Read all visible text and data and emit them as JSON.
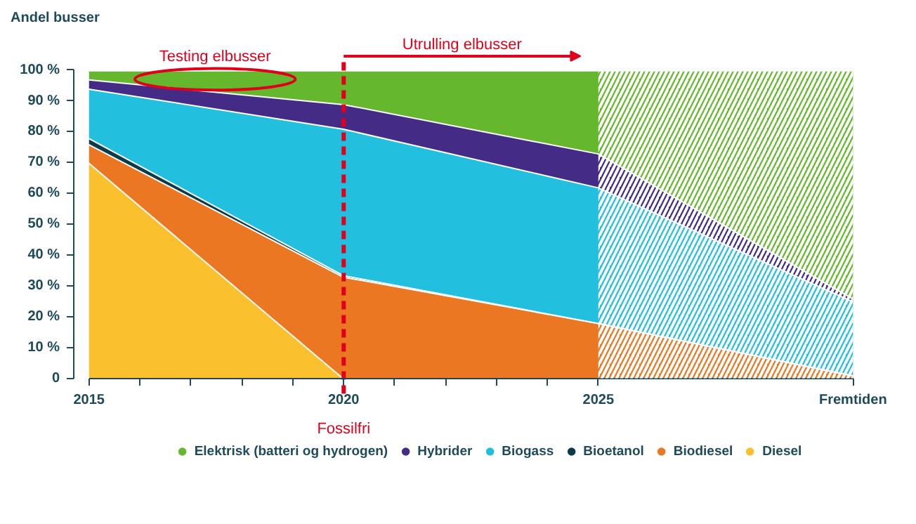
{
  "chart_data": {
    "type": "area",
    "stacked": true,
    "ylabel": "Andel busser",
    "x": [
      2015,
      2020,
      2025,
      2030
    ],
    "series": [
      {
        "name": "Diesel",
        "color": "#fbc02d",
        "values": [
          70,
          0,
          0,
          0
        ]
      },
      {
        "name": "Biodiesel",
        "color": "#eb7722",
        "values": [
          6,
          33,
          18,
          1
        ]
      },
      {
        "name": "Bioetanol",
        "color": "#0b3a4a",
        "values": [
          2,
          0.5,
          0,
          0
        ]
      },
      {
        "name": "Biogass",
        "color": "#22bfdf",
        "values": [
          16,
          47.5,
          44,
          24
        ]
      },
      {
        "name": "Hybrider",
        "color": "#432b86",
        "values": [
          3,
          8,
          11,
          1
        ]
      },
      {
        "name": "Elektrisk (batteri og hydrogen)",
        "color": "#65b72e",
        "values": [
          3,
          11,
          27,
          74
        ]
      }
    ],
    "xlim": [
      2015,
      2030
    ],
    "ylim": [
      0,
      100
    ],
    "xticks": [
      2015,
      {
        "value": 2016,
        "label": null
      },
      {
        "value": 2017,
        "label": null
      },
      {
        "value": 2018,
        "label": null
      },
      {
        "value": 2019,
        "label": null
      },
      2020,
      {
        "value": 2021,
        "label": null
      },
      {
        "value": 2022,
        "label": null
      },
      {
        "value": 2023,
        "label": null
      },
      {
        "value": 2024,
        "label": null
      },
      2025,
      {
        "value": 2030,
        "label": "Fremtiden"
      }
    ],
    "yticks": [
      {
        "value": 0,
        "label": "0"
      },
      {
        "value": 10,
        "label": "10 %"
      },
      {
        "value": 20,
        "label": "20 %"
      },
      {
        "value": 30,
        "label": "30 %"
      },
      {
        "value": 40,
        "label": "40 %"
      },
      {
        "value": 50,
        "label": "50 %"
      },
      {
        "value": 60,
        "label": "60 %"
      },
      {
        "value": 70,
        "label": "70 %"
      },
      {
        "value": 80,
        "label": "80 %"
      },
      {
        "value": 90,
        "label": "90 %"
      },
      {
        "value": 100,
        "label": "100 %"
      }
    ],
    "ref_lines": [
      {
        "axis": "x",
        "value": 2020,
        "label": "Fossilfri",
        "color": "#e0001b",
        "line_style": "dashed"
      }
    ],
    "bands": [
      {
        "axis": "x",
        "from": 2025,
        "to": 2030,
        "color": "#ffffff"
      }
    ],
    "annotations": [
      "Testing elbusser",
      "Utrulling elbusser"
    ],
    "grid": false,
    "legend": "bottom"
  }
}
